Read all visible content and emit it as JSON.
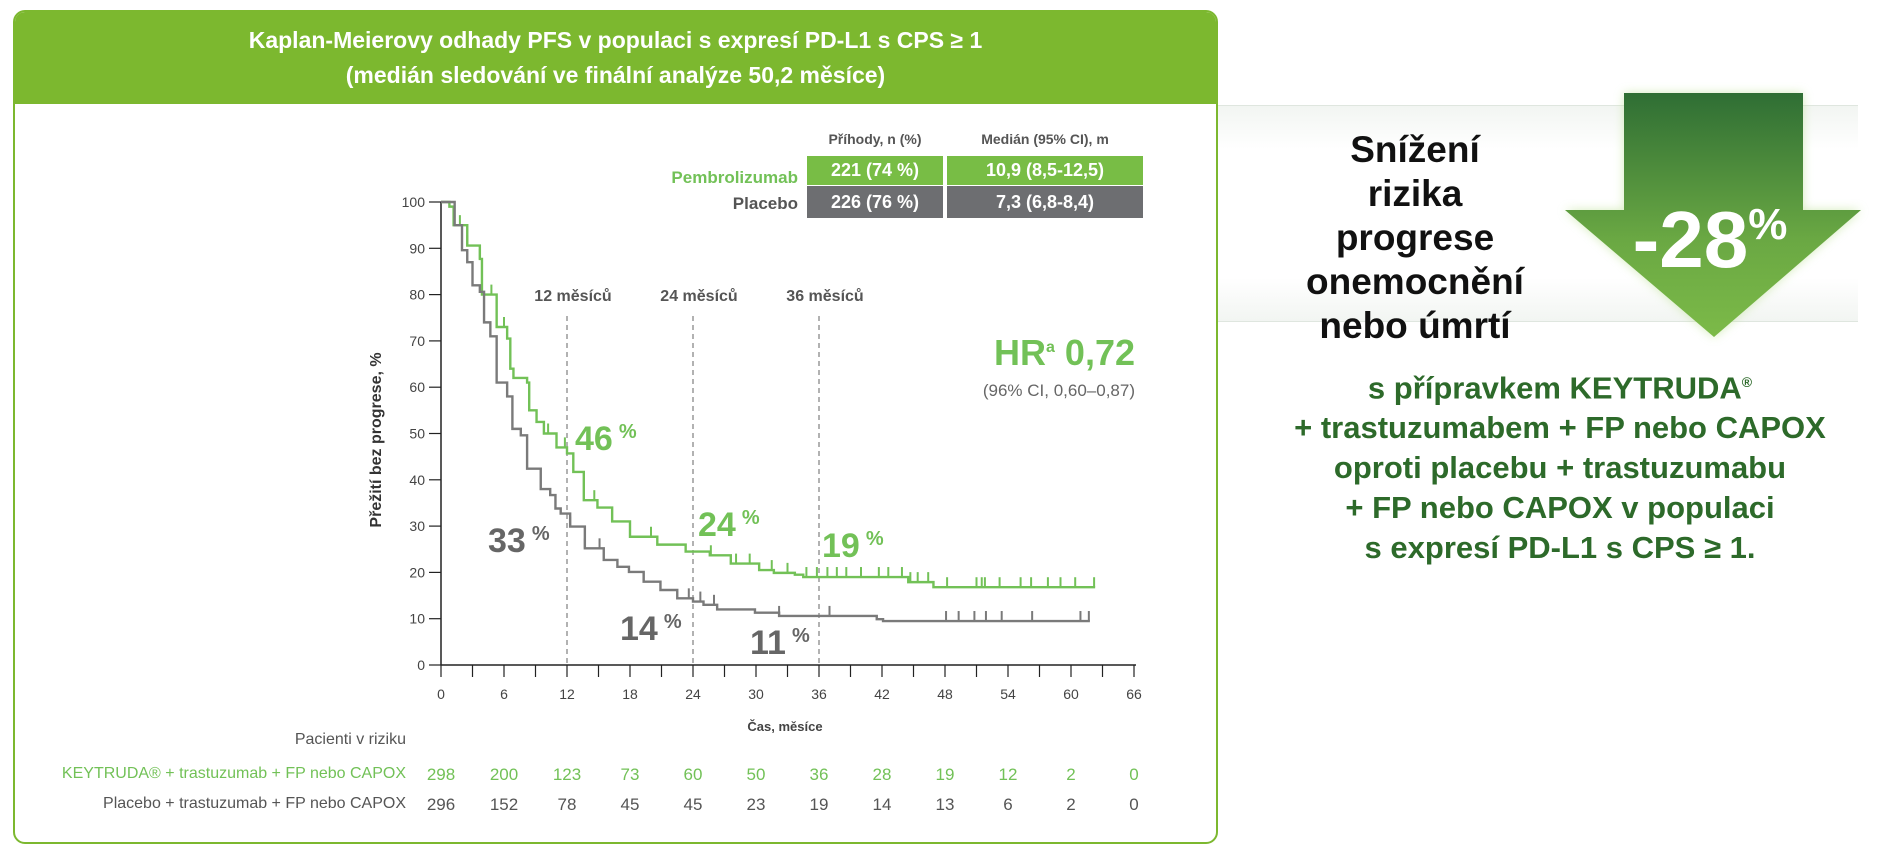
{
  "header": {
    "line1": "Kaplan-Meierovy odhady PFS v populaci s expresí PD-L1 s CPS ≥ 1",
    "line2": "(medián sledování ve finální analýze 50,2 měsíce)"
  },
  "summary_table": {
    "col_headers": [
      "Příhody, n (%)",
      "Medián (95% CI), m"
    ],
    "rows": [
      {
        "label": "Pembrolizumab",
        "events": "221 (74 %)",
        "median": "10,9 (8,5-12,5)"
      },
      {
        "label": "Placebo",
        "events": "226 (76 %)",
        "median": "7,3 (6,8-8,4)"
      }
    ]
  },
  "hr": {
    "label": "HR",
    "sup": "a",
    "value": "0,72",
    "ci": "(96% CI, 0,60–0,87)"
  },
  "risk_box": {
    "text": "Snížení rizika progrese onemocnění nebo úmrtí",
    "lines": [
      "Snížení rizika",
      "progrese",
      "onemocnění",
      "nebo úmrtí"
    ],
    "value": "-28",
    "unit": "%"
  },
  "claim": {
    "lines": [
      "s přípravkem KEYTRUDA",
      "+ trastuzumabem + FP nebo CAPOX",
      "oproti placebu + trastuzumabu",
      "+ FP nebo CAPOX v populaci",
      "s expresí PD-L1 s CPS ≥ 1."
    ],
    "reg": "®"
  },
  "risk_table": {
    "title": "Pacienti v riziku",
    "rows": [
      {
        "label": "KEYTRUDA® + trastuzumab + FP nebo CAPOX",
        "values": [
          "298",
          "200",
          "123",
          "73",
          "60",
          "50",
          "36",
          "28",
          "19",
          "12",
          "2",
          "0"
        ]
      },
      {
        "label": "Placebo + trastuzumab + FP nebo CAPOX",
        "values": [
          "296",
          "152",
          "78",
          "45",
          "45",
          "23",
          "19",
          "14",
          "13",
          "6",
          "2",
          "0"
        ]
      }
    ]
  },
  "colors": {
    "header": "#7cb82f",
    "pembro": "#72c157",
    "placebo": "#7a7a7a",
    "table_green": "#78bd45",
    "table_gray": "#6d6e71",
    "claim": "#2d6a2a",
    "arrow_top": "#2f6e34",
    "arrow_bottom": "#7cba48"
  },
  "chart_data": {
    "type": "line",
    "title": "Kaplan-Meierovy odhady PFS v populaci s expresí PD-L1 s CPS ≥ 1",
    "xlabel": "Čas, měsíce",
    "ylabel": "Přežití bez progrese, %",
    "xlim": [
      0,
      66
    ],
    "ylim": [
      0,
      100
    ],
    "xticks": [
      "0",
      "6",
      "12",
      "18",
      "24",
      "30",
      "36",
      "42",
      "48",
      "54",
      "60",
      "66"
    ],
    "yticks": [
      "0",
      "10",
      "20",
      "30",
      "40",
      "50",
      "60",
      "70",
      "80",
      "90",
      "100"
    ],
    "landmarks": [
      {
        "x": 12,
        "label": "12 měsíců"
      },
      {
        "x": 24,
        "label": "24 měsíců"
      },
      {
        "x": 36,
        "label": "36 měsíců"
      }
    ],
    "series": [
      {
        "name": "Pembrolizumab",
        "steps": [
          [
            0,
            100
          ],
          [
            0.8,
            99
          ],
          [
            1.2,
            95
          ],
          [
            2.5,
            90.6
          ],
          [
            3.7,
            87.7
          ],
          [
            3.9,
            80
          ],
          [
            5.3,
            73
          ],
          [
            6.3,
            70.5
          ],
          [
            6.6,
            64
          ],
          [
            6.9,
            62
          ],
          [
            8.2,
            61
          ],
          [
            8.4,
            55
          ],
          [
            9.1,
            52.5
          ],
          [
            9.8,
            50
          ],
          [
            11,
            47
          ],
          [
            12,
            45.7
          ],
          [
            12.6,
            41.7
          ],
          [
            13.6,
            35.6
          ],
          [
            14.9,
            34
          ],
          [
            16.3,
            31
          ],
          [
            18,
            27.7
          ],
          [
            20.6,
            26
          ],
          [
            23.3,
            24.5
          ],
          [
            25.6,
            23.7
          ],
          [
            27.6,
            21.9
          ],
          [
            30.3,
            20.5
          ],
          [
            31.7,
            19.9
          ],
          [
            33.7,
            19.5
          ],
          [
            34.5,
            19
          ],
          [
            44.5,
            17.9
          ],
          [
            46.9,
            16.8
          ],
          [
            62.3,
            16.8
          ]
        ],
        "censored": [
          1.8,
          2.5,
          3.7,
          4.8,
          6,
          10.2,
          11.8,
          14.6,
          20,
          25.7,
          28.1,
          29.4,
          31.5,
          33,
          34.8,
          35.8,
          36.8,
          37.7,
          38.6,
          40,
          41.7,
          42.6,
          43.9,
          44.7,
          45.4,
          46.4,
          48.2,
          51,
          51.5,
          51.8,
          53.2,
          55.2,
          56.2,
          57.8,
          59,
          60.4,
          62.2
        ],
        "landmark_labels": [
          {
            "x": 12,
            "value": "46",
            "unit": "%"
          },
          {
            "x": 24,
            "value": "24",
            "unit": "%"
          },
          {
            "x": 36,
            "value": "19",
            "unit": "%"
          }
        ]
      },
      {
        "name": "Placebo",
        "steps": [
          [
            0,
            100
          ],
          [
            1.3,
            95
          ],
          [
            2,
            89.6
          ],
          [
            2.5,
            87
          ],
          [
            3,
            82
          ],
          [
            3.7,
            80.6
          ],
          [
            4.1,
            74
          ],
          [
            4.7,
            71
          ],
          [
            5.3,
            61
          ],
          [
            6.3,
            58
          ],
          [
            6.8,
            51
          ],
          [
            7.6,
            49.6
          ],
          [
            8.2,
            42.4
          ],
          [
            9.5,
            38
          ],
          [
            10.4,
            36.7
          ],
          [
            10.9,
            33.8
          ],
          [
            11.4,
            32.7
          ],
          [
            12.3,
            29.9
          ],
          [
            13.7,
            25.2
          ],
          [
            15.5,
            22.7
          ],
          [
            16.8,
            21.2
          ],
          [
            17.9,
            20.1
          ],
          [
            19.3,
            18
          ],
          [
            20.9,
            16.2
          ],
          [
            22.5,
            14.4
          ],
          [
            24,
            13.7
          ],
          [
            25,
            13
          ],
          [
            26.3,
            12
          ],
          [
            29.9,
            11.3
          ],
          [
            32.2,
            10.6
          ],
          [
            41.5,
            9.9
          ],
          [
            42.1,
            9.5
          ],
          [
            61.8,
            9.5
          ]
        ],
        "censored": [
          12.3,
          13.7,
          15.1,
          19.3,
          23.6,
          24.7,
          26,
          32.2,
          37,
          48.1,
          49.3,
          50.8,
          51.9,
          53.4,
          56.3,
          60.9,
          61.7
        ],
        "landmark_labels": [
          {
            "x": 12,
            "value": "33",
            "unit": "%"
          },
          {
            "x": 24,
            "value": "14",
            "unit": "%"
          },
          {
            "x": 36,
            "value": "11",
            "unit": "%"
          }
        ]
      }
    ]
  }
}
